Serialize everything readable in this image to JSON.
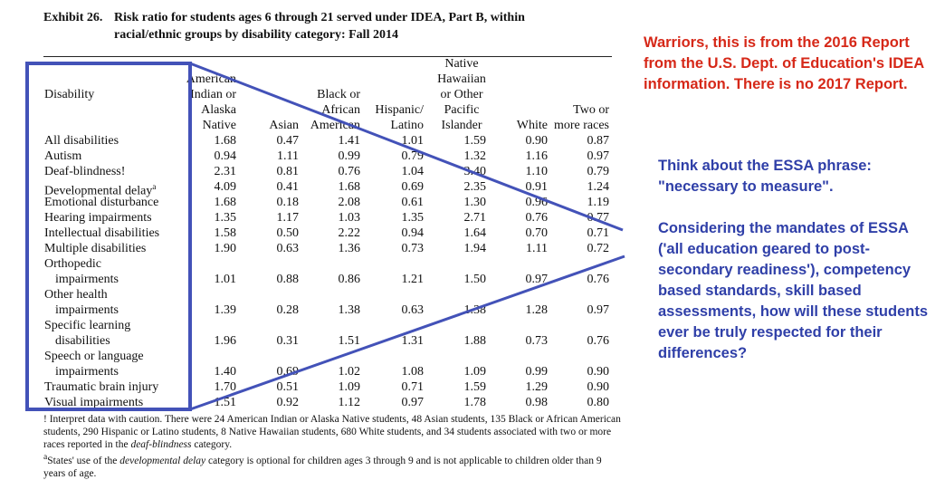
{
  "exhibit": {
    "number": "Exhibit 26.",
    "title_line1": "Risk ratio for students ages 6 through 21 served under IDEA, Part B, within",
    "title_line2": "racial/ethnic groups by disability category: Fall 2014"
  },
  "table": {
    "row_header": "Disability",
    "columns": [
      [
        "American",
        "Indian or",
        "Alaska",
        "Native"
      ],
      [
        "Asian"
      ],
      [
        "Black or",
        "African",
        "American"
      ],
      [
        "Hispanic/",
        "Latino"
      ],
      [
        "Native",
        "Hawaiian",
        "or Other",
        "Pacific",
        "Islander"
      ],
      [
        "White"
      ],
      [
        "Two or",
        "more races"
      ]
    ],
    "rows": [
      {
        "label": [
          "All disabilities"
        ],
        "values": [
          "1.68",
          "0.47",
          "1.41",
          "1.01",
          "1.59",
          "0.90",
          "0.87"
        ]
      },
      {
        "label": [
          "Autism"
        ],
        "values": [
          "0.94",
          "1.11",
          "0.99",
          "0.79",
          "1.32",
          "1.16",
          "0.97"
        ]
      },
      {
        "label": [
          "Deaf-blindness!"
        ],
        "values": [
          "2.31",
          "0.81",
          "0.76",
          "1.04",
          "3.40",
          "1.10",
          "0.79"
        ]
      },
      {
        "label": [
          "Developmental delay"
        ],
        "sup": "a",
        "values": [
          "4.09",
          "0.41",
          "1.68",
          "0.69",
          "2.35",
          "0.91",
          "1.24"
        ]
      },
      {
        "label": [
          "Emotional disturbance"
        ],
        "values": [
          "1.68",
          "0.18",
          "2.08",
          "0.61",
          "1.30",
          "0.96",
          "1.19"
        ]
      },
      {
        "label": [
          "Hearing impairments"
        ],
        "values": [
          "1.35",
          "1.17",
          "1.03",
          "1.35",
          "2.71",
          "0.76",
          "0.77"
        ]
      },
      {
        "label": [
          "Intellectual disabilities"
        ],
        "values": [
          "1.58",
          "0.50",
          "2.22",
          "0.94",
          "1.64",
          "0.70",
          "0.71"
        ]
      },
      {
        "label": [
          "Multiple disabilities"
        ],
        "values": [
          "1.90",
          "0.63",
          "1.36",
          "0.73",
          "1.94",
          "1.11",
          "0.72"
        ]
      },
      {
        "label": [
          "Orthopedic",
          "impairments"
        ],
        "values": [
          "1.01",
          "0.88",
          "0.86",
          "1.21",
          "1.50",
          "0.97",
          "0.76"
        ]
      },
      {
        "label": [
          "Other health",
          "impairments"
        ],
        "values": [
          "1.39",
          "0.28",
          "1.38",
          "0.63",
          "1.38",
          "1.28",
          "0.97"
        ]
      },
      {
        "label": [
          "Specific learning",
          "disabilities"
        ],
        "values": [
          "1.96",
          "0.31",
          "1.51",
          "1.31",
          "1.88",
          "0.73",
          "0.76"
        ]
      },
      {
        "label": [
          "Speech or language",
          "impairments"
        ],
        "values": [
          "1.40",
          "0.69",
          "1.02",
          "1.08",
          "1.09",
          "0.99",
          "0.90"
        ]
      },
      {
        "label": [
          "Traumatic brain injury"
        ],
        "values": [
          "1.70",
          "0.51",
          "1.09",
          "0.71",
          "1.59",
          "1.29",
          "0.90"
        ]
      },
      {
        "label": [
          "Visual impairments"
        ],
        "values": [
          "1.51",
          "0.92",
          "1.12",
          "0.97",
          "1.78",
          "0.98",
          "0.80"
        ]
      }
    ]
  },
  "footnotes": {
    "note1": "! Interpret data with caution. There were 24 American Indian or Alaska Native students, 48 Asian students, 135 Black or African American students, 290 Hispanic or Latino students, 8 Native Hawaiian students, 680 White students, and 34 students associated with two or more races reported in the ",
    "note1_italic": "deaf-blindness",
    "note1_end": " category.",
    "note2_sup": "a",
    "note2_start": "States' use of the ",
    "note2_italic": "developmental delay",
    "note2_end": " category is optional for children ages 3 through 9 and is not applicable to children older than 9 years of age."
  },
  "annotations": {
    "red_note": "Warriors, this is from the 2016 Report from the U.S. Dept. of Education's IDEA information. There is no 2017 Report.",
    "blue_note1": "Think about the ESSA phrase: \"necessary to measure\".",
    "blue_note2": "Considering the mandates of ESSA ('all education geared to post-secondary readiness'), competency based standards, skill based assessments, how will these students ever be truly respected for their differences?",
    "red_color": "#d62818",
    "blue_color": "#2f3fa8",
    "markup_color": "#4352b8"
  }
}
